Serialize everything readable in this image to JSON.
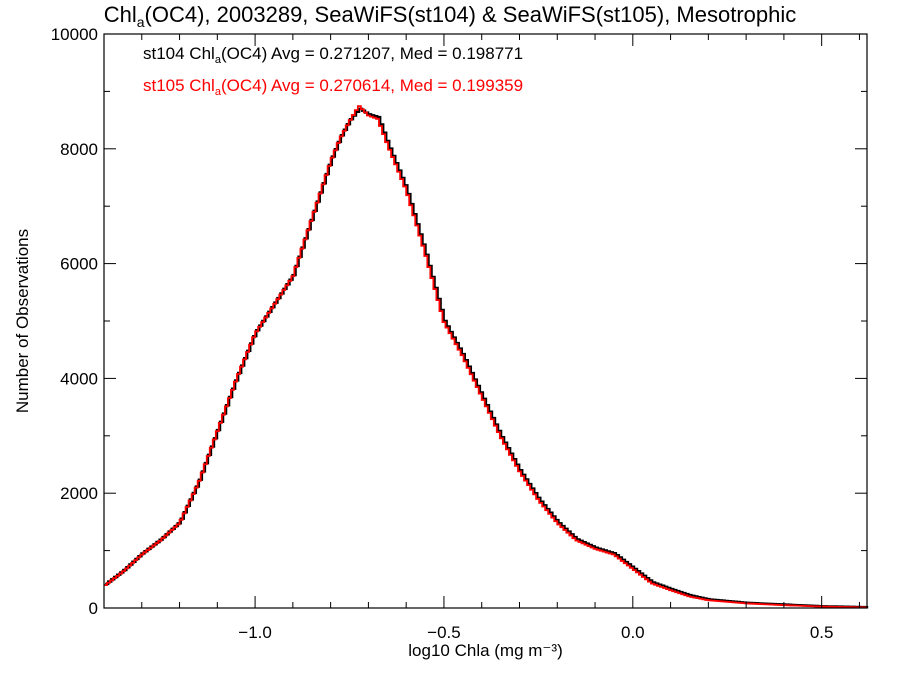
{
  "chart_data": {
    "type": "line",
    "title": {
      "prefix": "Chl",
      "sub": "a",
      "suffix": "(OC4), 2003289, SeaWiFS(st104) & SeaWiFS(st105), Mesotrophic"
    },
    "xlabel": "log10 Chla (mg m⁻³)",
    "ylabel": "Number of Observations",
    "xlim": [
      -1.4,
      0.62
    ],
    "ylim": [
      0,
      10000
    ],
    "x_ticks": [
      -1.0,
      -0.5,
      0.0,
      0.5
    ],
    "x_tick_labels": [
      "−1.0",
      "−0.5",
      "0.0",
      "0.5"
    ],
    "y_ticks": [
      0,
      2000,
      4000,
      6000,
      8000,
      10000
    ],
    "y_tick_labels": [
      "0",
      "2000",
      "4000",
      "6000",
      "8000",
      "10000"
    ],
    "step_style": "histogram",
    "grid": false,
    "annotations": [
      {
        "series": "st104",
        "prefix": "st104 Chl",
        "sub": "a",
        "suffix": "(OC4) Avg = 0.271207, Med = 0.198771",
        "color": "#000000"
      },
      {
        "series": "st105",
        "prefix": "st105 Chl",
        "sub": "a",
        "suffix": "(OC4) Avg = 0.270614, Med = 0.199359",
        "color": "#ff0000"
      }
    ],
    "x": [
      -1.4,
      -1.35,
      -1.3,
      -1.25,
      -1.2,
      -1.15,
      -1.1,
      -1.05,
      -1.0,
      -0.95,
      -0.9,
      -0.85,
      -0.8,
      -0.775,
      -0.75,
      -0.725,
      -0.7,
      -0.675,
      -0.65,
      -0.6,
      -0.55,
      -0.5,
      -0.45,
      -0.4,
      -0.35,
      -0.3,
      -0.25,
      -0.2,
      -0.15,
      -0.1,
      -0.05,
      0.0,
      0.05,
      0.1,
      0.15,
      0.2,
      0.3,
      0.4,
      0.5,
      0.62
    ],
    "series": [
      {
        "name": "st104",
        "color": "#000000",
        "values": [
          400,
          650,
          950,
          1200,
          1500,
          2200,
          3100,
          4000,
          4800,
          5300,
          5800,
          6800,
          7800,
          8200,
          8500,
          8700,
          8600,
          8550,
          8100,
          7300,
          6200,
          5000,
          4400,
          3700,
          3000,
          2400,
          1900,
          1500,
          1200,
          1050,
          950,
          700,
          450,
          330,
          220,
          150,
          90,
          60,
          30,
          15
        ]
      },
      {
        "name": "st105",
        "color": "#ff0000",
        "values": [
          380,
          630,
          930,
          1180,
          1480,
          2180,
          3080,
          3980,
          4780,
          5280,
          5780,
          6780,
          7780,
          8180,
          8480,
          8750,
          8580,
          8520,
          8080,
          7280,
          6180,
          4980,
          4380,
          3680,
          2980,
          2380,
          1880,
          1480,
          1180,
          1030,
          930,
          680,
          430,
          310,
          200,
          135,
          80,
          50,
          25,
          10
        ]
      }
    ]
  }
}
